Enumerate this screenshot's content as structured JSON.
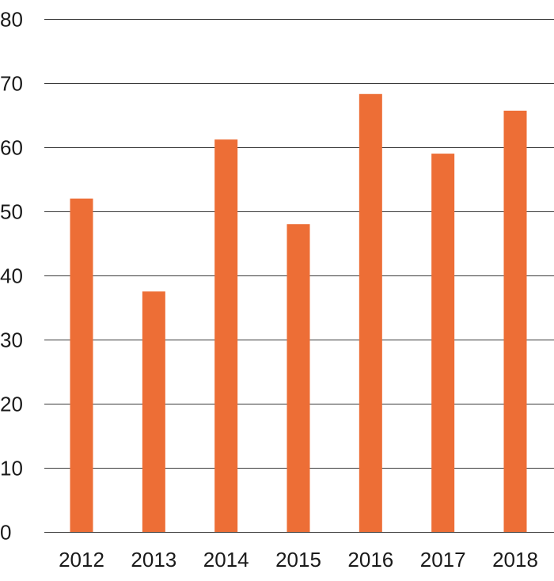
{
  "chart_data": {
    "type": "bar",
    "title": "",
    "xlabel": "",
    "ylabel": "",
    "categories": [
      "2012",
      "2013",
      "2014",
      "2015",
      "2016",
      "2017",
      "2018"
    ],
    "values": [
      52,
      37.5,
      61.2,
      48,
      68.3,
      59,
      65.7
    ],
    "ylim": [
      0,
      80
    ],
    "yticks": [
      "0",
      "10",
      "20",
      "30",
      "40",
      "50",
      "60",
      "70",
      "80"
    ],
    "grid": true,
    "legend": "none",
    "bar_color": "#ED6E36",
    "grid_color": "#3a3a3a"
  }
}
